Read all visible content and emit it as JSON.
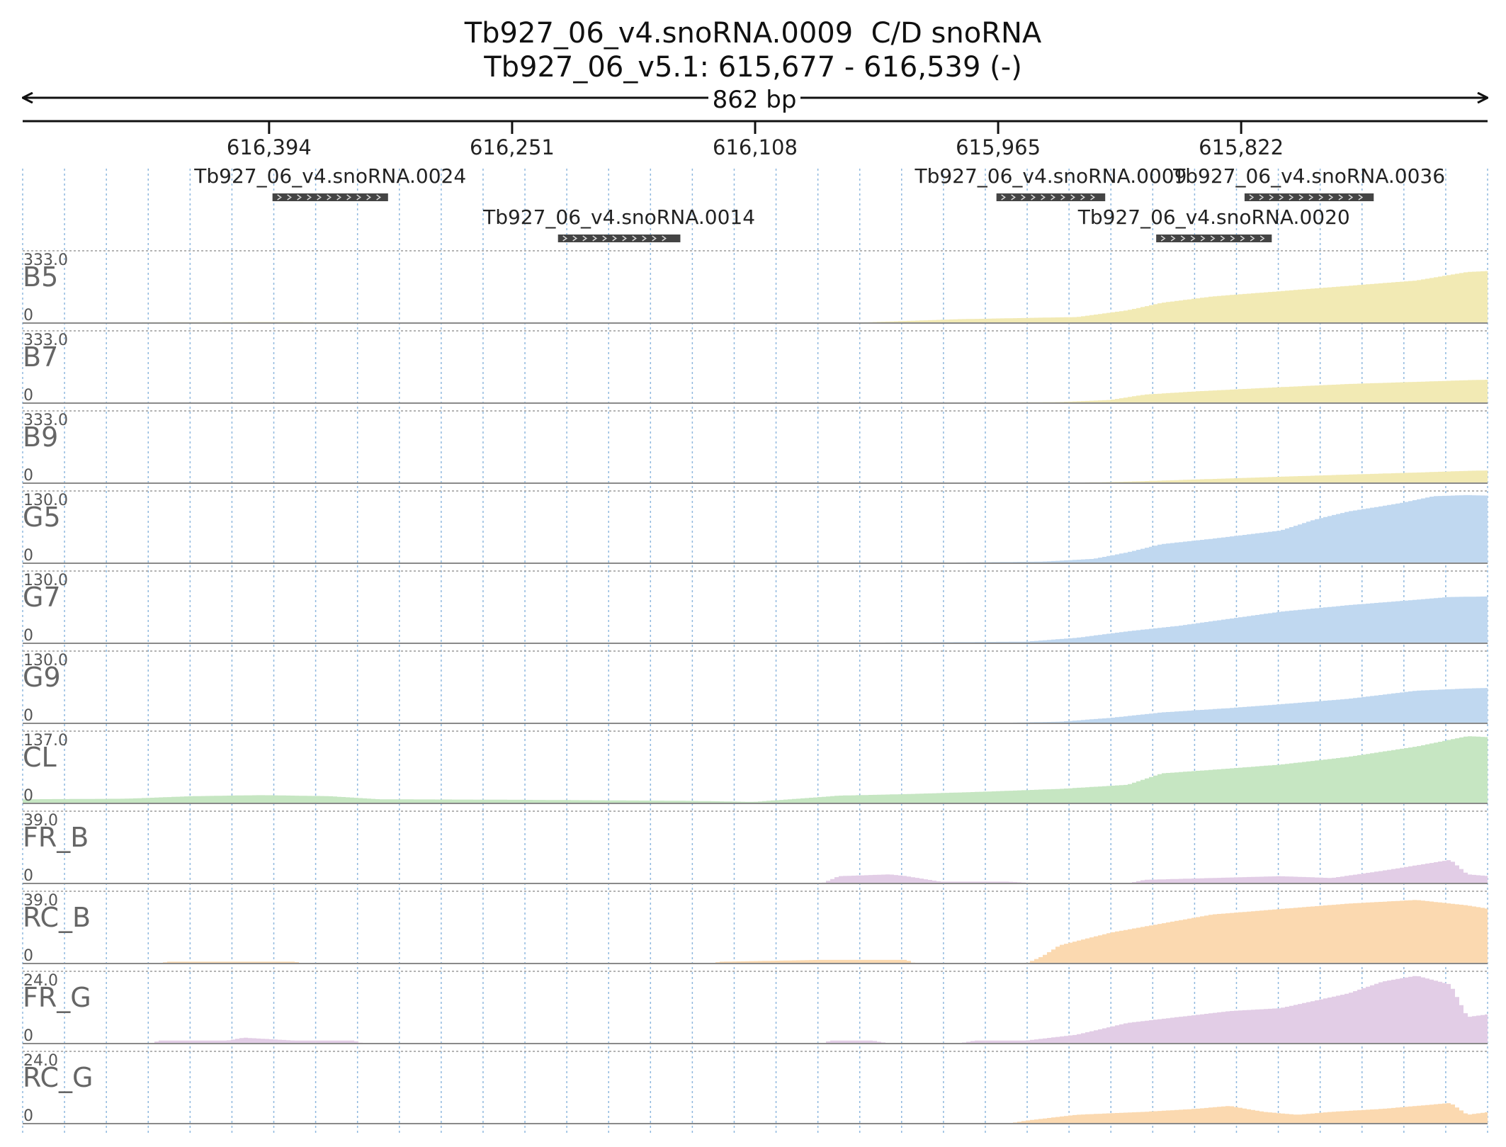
{
  "header": {
    "title": "Tb927_06_v4.snoRNA.0009  C/D snoRNA",
    "subtitle": "Tb927_06_v5.1: 615,677 - 616,539 (-)"
  },
  "chart_data": {
    "type": "area",
    "span_label": "862 bp",
    "x_range": [
      616539,
      615677
    ],
    "x_direction": "reverse",
    "grid": "vertical dotted lines",
    "x_ticks": [
      {
        "value": 616394,
        "label": "616,394"
      },
      {
        "value": 616251,
        "label": "616,251"
      },
      {
        "value": 616108,
        "label": "616,108"
      },
      {
        "value": 615965,
        "label": "615,965"
      },
      {
        "value": 615822,
        "label": "615,822"
      }
    ],
    "features": [
      {
        "label": "Tb927_06_v4.snoRNA.0024",
        "start": 616392,
        "end": 616324,
        "row": 0
      },
      {
        "label": "Tb927_06_v4.snoRNA.0014",
        "start": 616224,
        "end": 616152,
        "row": 1
      },
      {
        "label": "Tb927_06_v4.snoRNA.0009",
        "start": 615966,
        "end": 615902,
        "row": 0
      },
      {
        "label": "Tb927_06_v4.snoRNA.0020",
        "start": 615872,
        "end": 615804,
        "row": 1
      },
      {
        "label": "Tb927_06_v4.snoRNA.0036",
        "start": 615820,
        "end": 615744,
        "row": 0
      }
    ],
    "tracks": [
      {
        "name": "B5",
        "ymax": 333.0,
        "ymax_label": "333.0",
        "color": "#f2eab4",
        "points": [
          [
            616539,
            2
          ],
          [
            616400,
            5
          ],
          [
            616300,
            3
          ],
          [
            616200,
            2
          ],
          [
            616150,
            2
          ],
          [
            616050,
            2
          ],
          [
            616020,
            10
          ],
          [
            615990,
            18
          ],
          [
            615950,
            24
          ],
          [
            615920,
            28
          ],
          [
            615890,
            60
          ],
          [
            615870,
            95
          ],
          [
            615840,
            125
          ],
          [
            615800,
            150
          ],
          [
            615760,
            175
          ],
          [
            615720,
            200
          ],
          [
            615690,
            240
          ],
          [
            615677,
            245
          ]
        ]
      },
      {
        "name": "B7",
        "ymax": 333.0,
        "ymax_label": "333.0",
        "color": "#f2eab4",
        "points": [
          [
            616539,
            0
          ],
          [
            616100,
            0
          ],
          [
            615990,
            2
          ],
          [
            615930,
            5
          ],
          [
            615900,
            15
          ],
          [
            615880,
            40
          ],
          [
            615850,
            55
          ],
          [
            615800,
            75
          ],
          [
            615760,
            90
          ],
          [
            615720,
            100
          ],
          [
            615690,
            108
          ],
          [
            615677,
            110
          ]
        ]
      },
      {
        "name": "B9",
        "ymax": 333.0,
        "ymax_label": "333.0",
        "color": "#f2eab4",
        "points": [
          [
            616539,
            0
          ],
          [
            615950,
            0
          ],
          [
            615900,
            5
          ],
          [
            615870,
            12
          ],
          [
            615820,
            25
          ],
          [
            615770,
            38
          ],
          [
            615720,
            50
          ],
          [
            615690,
            58
          ],
          [
            615677,
            60
          ]
        ]
      },
      {
        "name": "G5",
        "ymax": 130.0,
        "ymax_label": "130.0",
        "color": "#c0d8f0",
        "points": [
          [
            616539,
            1
          ],
          [
            616000,
            1
          ],
          [
            615940,
            3
          ],
          [
            615910,
            8
          ],
          [
            615890,
            20
          ],
          [
            615870,
            35
          ],
          [
            615840,
            45
          ],
          [
            615800,
            60
          ],
          [
            615780,
            80
          ],
          [
            615760,
            95
          ],
          [
            615730,
            110
          ],
          [
            615710,
            123
          ],
          [
            615690,
            125
          ],
          [
            615677,
            124
          ]
        ]
      },
      {
        "name": "G7",
        "ymax": 130.0,
        "ymax_label": "130.0",
        "color": "#c0d8f0",
        "points": [
          [
            616539,
            1
          ],
          [
            616100,
            0
          ],
          [
            616000,
            2
          ],
          [
            615950,
            3
          ],
          [
            615920,
            10
          ],
          [
            615890,
            22
          ],
          [
            615860,
            32
          ],
          [
            615830,
            45
          ],
          [
            615800,
            58
          ],
          [
            615760,
            70
          ],
          [
            615720,
            80
          ],
          [
            615700,
            85
          ],
          [
            615677,
            86
          ]
        ]
      },
      {
        "name": "G9",
        "ymax": 130.0,
        "ymax_label": "130.0",
        "color": "#c0d8f0",
        "points": [
          [
            616539,
            0
          ],
          [
            615980,
            0
          ],
          [
            615930,
            3
          ],
          [
            615900,
            10
          ],
          [
            615870,
            20
          ],
          [
            615830,
            28
          ],
          [
            615800,
            35
          ],
          [
            615760,
            45
          ],
          [
            615720,
            60
          ],
          [
            615690,
            64
          ],
          [
            615677,
            65
          ]
        ]
      },
      {
        "name": "CL",
        "ymax": 137.0,
        "ymax_label": "137.0",
        "color": "#c6e6c2",
        "points": [
          [
            616539,
            8
          ],
          [
            616480,
            9
          ],
          [
            616440,
            14
          ],
          [
            616400,
            16
          ],
          [
            616360,
            14
          ],
          [
            616330,
            8
          ],
          [
            616250,
            7
          ],
          [
            616150,
            5
          ],
          [
            616110,
            3
          ],
          [
            616080,
            10
          ],
          [
            616060,
            15
          ],
          [
            616020,
            18
          ],
          [
            615980,
            22
          ],
          [
            615930,
            28
          ],
          [
            615890,
            36
          ],
          [
            615870,
            58
          ],
          [
            615840,
            65
          ],
          [
            615800,
            75
          ],
          [
            615760,
            90
          ],
          [
            615720,
            110
          ],
          [
            615690,
            130
          ],
          [
            615677,
            128
          ]
        ]
      },
      {
        "name": "FR_B",
        "ymax": 39.0,
        "ymax_label": "39.0",
        "color": "#e2cde6",
        "points": [
          [
            616539,
            0
          ],
          [
            616070,
            0
          ],
          [
            616060,
            4
          ],
          [
            616030,
            5
          ],
          [
            616020,
            4
          ],
          [
            616000,
            1
          ],
          [
            615960,
            1
          ],
          [
            615940,
            0
          ],
          [
            615890,
            0
          ],
          [
            615880,
            2
          ],
          [
            615840,
            3
          ],
          [
            615800,
            4
          ],
          [
            615770,
            3
          ],
          [
            615740,
            7
          ],
          [
            615720,
            10
          ],
          [
            615700,
            13
          ],
          [
            615690,
            5
          ],
          [
            615677,
            4
          ]
        ]
      },
      {
        "name": "RC_B",
        "ymax": 39.0,
        "ymax_label": "39.0",
        "color": "#fbd9b0",
        "points": [
          [
            616539,
            0
          ],
          [
            616460,
            0
          ],
          [
            616455,
            1
          ],
          [
            616380,
            1
          ],
          [
            616375,
            0
          ],
          [
            616135,
            0
          ],
          [
            616130,
            1
          ],
          [
            616070,
            2
          ],
          [
            616020,
            2
          ],
          [
            616015,
            0
          ],
          [
            615950,
            0
          ],
          [
            615940,
            4
          ],
          [
            615930,
            10
          ],
          [
            615900,
            17
          ],
          [
            615870,
            22
          ],
          [
            615840,
            27
          ],
          [
            615800,
            30
          ],
          [
            615760,
            33
          ],
          [
            615720,
            35
          ],
          [
            615690,
            32
          ],
          [
            615677,
            30
          ]
        ]
      },
      {
        "name": "FR_G",
        "ymax": 24.0,
        "ymax_label": "24.0",
        "color": "#e2cde6",
        "points": [
          [
            616539,
            0
          ],
          [
            616465,
            0
          ],
          [
            616460,
            1
          ],
          [
            616420,
            1
          ],
          [
            616410,
            2
          ],
          [
            616380,
            1
          ],
          [
            616345,
            1
          ],
          [
            616340,
            0
          ],
          [
            616070,
            0
          ],
          [
            616065,
            1
          ],
          [
            616040,
            1
          ],
          [
            616030,
            0
          ],
          [
            615990,
            0
          ],
          [
            615980,
            1
          ],
          [
            615950,
            1
          ],
          [
            615920,
            3
          ],
          [
            615890,
            7
          ],
          [
            615860,
            9
          ],
          [
            615830,
            11
          ],
          [
            615800,
            12
          ],
          [
            615760,
            17
          ],
          [
            615740,
            21
          ],
          [
            615720,
            23
          ],
          [
            615700,
            20
          ],
          [
            615690,
            9
          ],
          [
            615677,
            10
          ]
        ]
      },
      {
        "name": "RC_G",
        "ymax": 24.0,
        "ymax_label": "24.0",
        "color": "#fbd9b0",
        "points": [
          [
            616539,
            0
          ],
          [
            615960,
            0
          ],
          [
            615950,
            1
          ],
          [
            615920,
            3
          ],
          [
            615880,
            4
          ],
          [
            615850,
            5
          ],
          [
            615830,
            6
          ],
          [
            615810,
            4
          ],
          [
            615790,
            3
          ],
          [
            615770,
            4
          ],
          [
            615740,
            5
          ],
          [
            615720,
            6
          ],
          [
            615700,
            7
          ],
          [
            615690,
            3
          ],
          [
            615677,
            4
          ]
        ]
      }
    ]
  }
}
